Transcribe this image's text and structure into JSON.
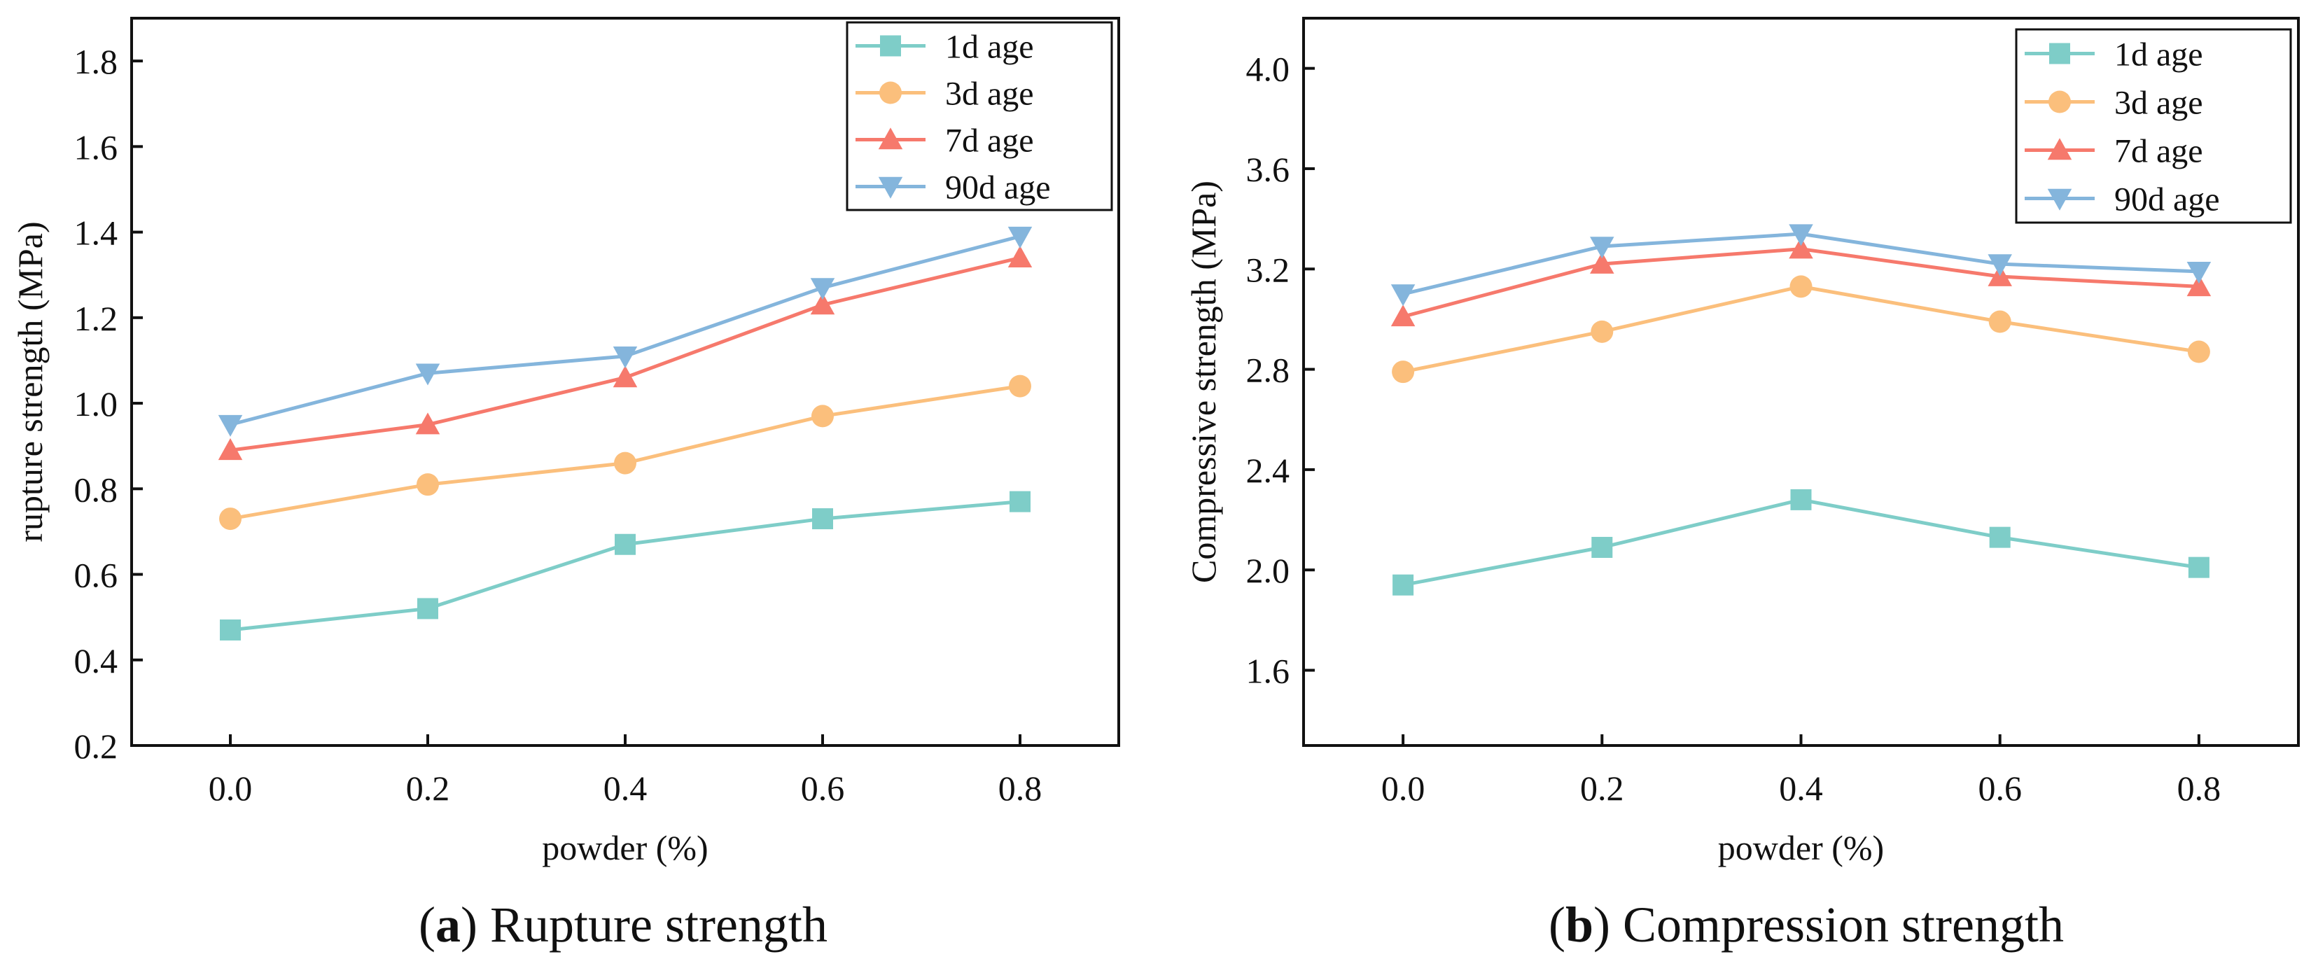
{
  "charts": [
    {
      "type": "line",
      "title": "",
      "xlabel": "powder (%)",
      "ylabel": "rupture strength (MPa)",
      "caption_letter": "a",
      "caption_text": "Rupture strength",
      "x": [
        0.0,
        0.2,
        0.4,
        0.6,
        0.8
      ],
      "xtick_labels": [
        "0.0",
        "0.2",
        "0.4",
        "0.6",
        "0.8"
      ],
      "xlim": [
        -0.1,
        0.9
      ],
      "ylim": [
        0.2,
        1.9
      ],
      "yticks": [
        0.2,
        0.4,
        0.6,
        0.8,
        1.0,
        1.2,
        1.4,
        1.6,
        1.8
      ],
      "ytick_labels": [
        "0.2",
        "0.4",
        "0.6",
        "0.8",
        "1.0",
        "1.2",
        "1.4",
        "1.6",
        "1.8"
      ],
      "legend_position": "top-right",
      "series": [
        {
          "name": "1d  age",
          "marker": "square",
          "color": "#7ecdc8",
          "values": [
            0.47,
            0.52,
            0.67,
            0.73,
            0.77
          ]
        },
        {
          "name": "3d  age",
          "marker": "circle",
          "color": "#fbbf7c",
          "values": [
            0.73,
            0.81,
            0.86,
            0.97,
            1.04
          ]
        },
        {
          "name": "7d  age",
          "marker": "triangle-up",
          "color": "#f6796c",
          "values": [
            0.89,
            0.95,
            1.06,
            1.23,
            1.34
          ]
        },
        {
          "name": "90d  age",
          "marker": "triangle-down",
          "color": "#84b5dc",
          "values": [
            0.95,
            1.07,
            1.11,
            1.27,
            1.39
          ]
        }
      ]
    },
    {
      "type": "line",
      "title": "",
      "xlabel": "powder (%)",
      "ylabel": "Compressive strength (MPa)",
      "caption_letter": "b",
      "caption_text": "Compression strength",
      "x": [
        0.0,
        0.2,
        0.4,
        0.6,
        0.8
      ],
      "xtick_labels": [
        "0.0",
        "0.2",
        "0.4",
        "0.6",
        "0.8"
      ],
      "xlim": [
        -0.1,
        0.9
      ],
      "ylim": [
        1.3,
        4.2
      ],
      "yticks": [
        1.6,
        2.0,
        2.4,
        2.8,
        3.2,
        3.6,
        4.0
      ],
      "ytick_labels": [
        "1.6",
        "2.0",
        "2.4",
        "2.8",
        "3.2",
        "3.6",
        "4.0"
      ],
      "legend_position": "top-right",
      "series": [
        {
          "name": "1d  age",
          "marker": "square",
          "color": "#7ecdc8",
          "values": [
            1.94,
            2.09,
            2.28,
            2.13,
            2.01
          ]
        },
        {
          "name": "3d  age",
          "marker": "circle",
          "color": "#fbbf7c",
          "values": [
            2.79,
            2.95,
            3.13,
            2.99,
            2.87
          ]
        },
        {
          "name": "7d  age",
          "marker": "triangle-up",
          "color": "#f6796c",
          "values": [
            3.01,
            3.22,
            3.28,
            3.17,
            3.13
          ]
        },
        {
          "name": "90d  age",
          "marker": "triangle-down",
          "color": "#84b5dc",
          "values": [
            3.1,
            3.29,
            3.34,
            3.22,
            3.19
          ]
        }
      ]
    }
  ]
}
